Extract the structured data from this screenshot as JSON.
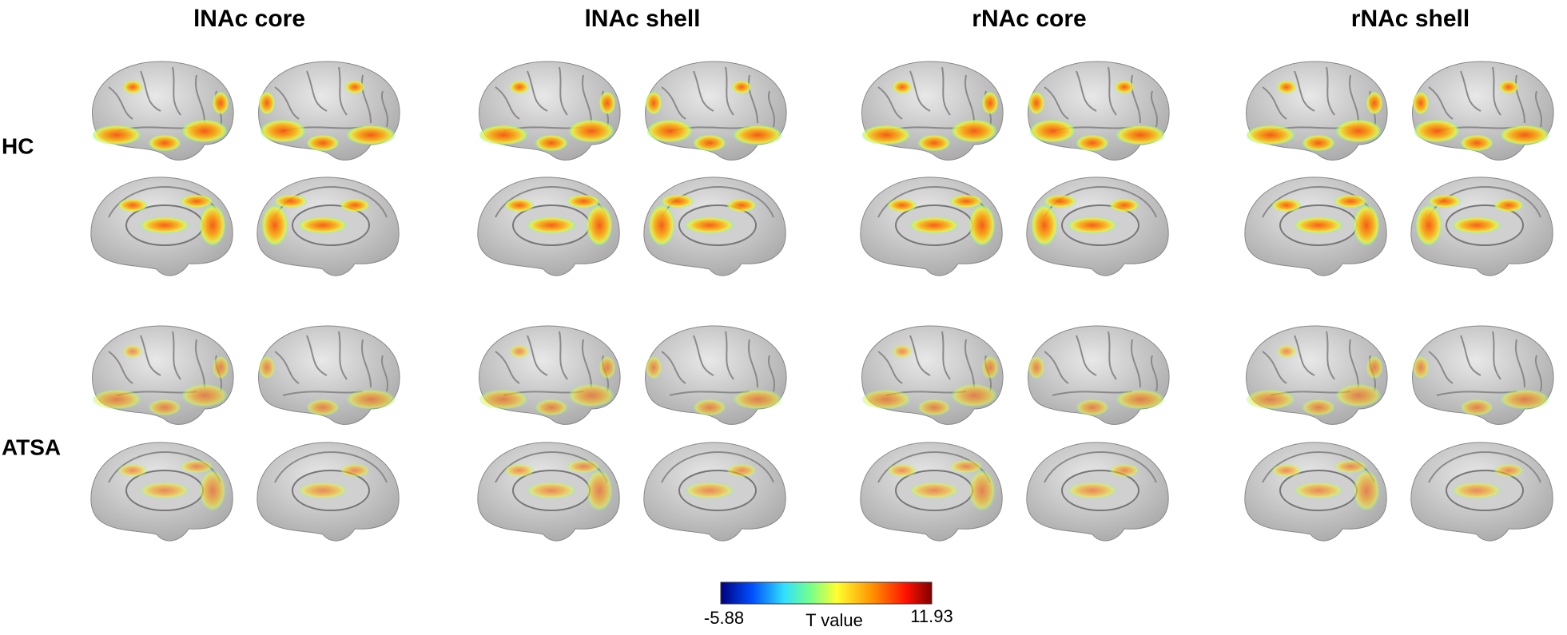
{
  "columns": [
    "lNAc core",
    "lNAc shell",
    "rNAc core",
    "rNAc shell"
  ],
  "rows": [
    "HC",
    "ATSA"
  ],
  "colorbar": {
    "min": -5.88,
    "max": 11.93,
    "label": "T value"
  }
}
